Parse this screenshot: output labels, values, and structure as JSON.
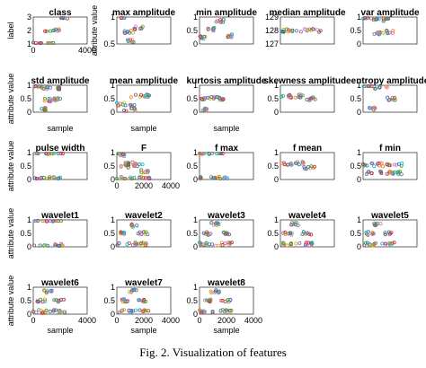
{
  "caption": "Fig. 2.   Visualization of features",
  "palette": [
    "#1f77b4",
    "#d62728",
    "#2ca02c",
    "#9467bd",
    "#ff7f0e",
    "#17becf",
    "#e377c2",
    "#8c564b",
    "#bcbd22",
    "#7f7f7f"
  ],
  "chart_data": [
    {
      "type": "scatter",
      "title": "class",
      "xlabel": "",
      "ylabel": "label",
      "xlim": [
        0,
        4000
      ],
      "ylim": [
        1,
        3
      ],
      "x_ticks": [
        "0",
        "4000"
      ],
      "y_ticks": [
        "1",
        "2",
        "3"
      ],
      "clusters": [
        {
          "x": [
            0,
            1600
          ],
          "y": 1
        },
        {
          "x": [
            800,
            2000
          ],
          "y": 2
        },
        {
          "x": [
            1800,
            2600
          ],
          "y": 3
        }
      ]
    },
    {
      "type": "scatter",
      "title": "max amplitude",
      "xlabel": "",
      "ylabel": "attribute value",
      "xlim": [
        0,
        4000
      ],
      "ylim": [
        0,
        1
      ],
      "x_ticks": [],
      "y_ticks": [
        "0.5",
        "1"
      ],
      "clusters": [
        {
          "x": [
            0,
            600
          ],
          "y": 1
        },
        {
          "x": [
            500,
            1200
          ],
          "y": 0.45
        },
        {
          "x": [
            1300,
            2000
          ],
          "y": 0.6
        },
        {
          "x": [
            800,
            1300
          ],
          "y": 0.1
        }
      ]
    },
    {
      "type": "scatter",
      "title": "min amplitude",
      "xlabel": "",
      "ylabel": "",
      "xlim": [
        0,
        4000
      ],
      "ylim": [
        0,
        1
      ],
      "x_ticks": [],
      "y_ticks": [
        "0",
        "0.5",
        "1"
      ],
      "clusters": [
        {
          "x": [
            0,
            600
          ],
          "y": 0.25
        },
        {
          "x": [
            500,
            1100
          ],
          "y": 0.55
        },
        {
          "x": [
            1100,
            1800
          ],
          "y": 0.85
        },
        {
          "x": [
            1700,
            2600
          ],
          "y": 0.3
        }
      ]
    },
    {
      "type": "scatter",
      "title": "median amplitude",
      "xlabel": "",
      "ylabel": "",
      "xlim": [
        0,
        4000
      ],
      "ylim": [
        127,
        129
      ],
      "x_ticks": [],
      "y_ticks": [
        "127",
        "128",
        "129"
      ],
      "clusters": [
        {
          "x": [
            0,
            3000
          ],
          "y": 128
        }
      ]
    },
    {
      "type": "scatter",
      "title": "var amplitude",
      "xlabel": "",
      "ylabel": "",
      "xlim": [
        0,
        4000
      ],
      "ylim": [
        0,
        1
      ],
      "x_ticks": [],
      "y_ticks": [
        "0",
        "0.5",
        "1"
      ],
      "clusters": [
        {
          "x": [
            0,
            600
          ],
          "y": 1
        },
        {
          "x": [
            600,
            1200
          ],
          "y": 0.9
        },
        {
          "x": [
            1300,
            1900
          ],
          "y": 0.9
        },
        {
          "x": [
            700,
            1300
          ],
          "y": 0.4
        },
        {
          "x": [
            1500,
            2300
          ],
          "y": 0.45
        }
      ]
    },
    {
      "type": "scatter",
      "title": "std amplitude",
      "xlabel": "sample",
      "ylabel": "attribute value",
      "xlim": [
        0,
        4000
      ],
      "ylim": [
        0,
        1
      ],
      "x_ticks": [],
      "y_ticks": [
        "0",
        "0.5",
        "1"
      ],
      "clusters": [
        {
          "x": [
            0,
            600
          ],
          "y": 1
        },
        {
          "x": [
            600,
            1300
          ],
          "y": 0.9
        },
        {
          "x": [
            1300,
            2000
          ],
          "y": 0.9
        },
        {
          "x": [
            800,
            1300
          ],
          "y": 0.45
        },
        {
          "x": [
            1500,
            2200
          ],
          "y": 0.5
        },
        {
          "x": [
            600,
            1000
          ],
          "y": 0.1
        }
      ]
    },
    {
      "type": "scatter",
      "title": "mean amplitude",
      "xlabel": "sample",
      "ylabel": "",
      "xlim": [
        0,
        4000
      ],
      "ylim": [
        0,
        1
      ],
      "x_ticks": [],
      "y_ticks": [
        "0",
        "0.5",
        "1"
      ],
      "clusters": [
        {
          "x": [
            0,
            1300
          ],
          "y": 0.3
        },
        {
          "x": [
            1000,
            2600
          ],
          "y": 0.6
        },
        {
          "x": [
            500,
            1500
          ],
          "y": 0.1
        }
      ]
    },
    {
      "type": "scatter",
      "title": "kurtosis amplitude",
      "xlabel": "sample",
      "ylabel": "",
      "xlim": [
        0,
        4000
      ],
      "ylim": [
        0,
        1
      ],
      "x_ticks": [],
      "y_ticks": [
        "0",
        "0.5",
        "1"
      ],
      "clusters": [
        {
          "x": [
            0,
            700
          ],
          "y": 0.5
        },
        {
          "x": [
            600,
            1400
          ],
          "y": 0.55
        },
        {
          "x": [
            1400,
            2200
          ],
          "y": 0.5
        },
        {
          "x": [
            200,
            600
          ],
          "y": 0.1
        }
      ]
    },
    {
      "type": "scatter",
      "title": "skewness amplitude",
      "xlabel": "",
      "ylabel": "",
      "xlim": [
        0,
        4000
      ],
      "ylim": [
        0,
        1
      ],
      "x_ticks": [],
      "y_ticks": [
        "0",
        "0.5",
        "1"
      ],
      "clusters": [
        {
          "x": [
            0,
            800
          ],
          "y": 0.6
        },
        {
          "x": [
            800,
            1800
          ],
          "y": 0.6
        },
        {
          "x": [
            1800,
            2600
          ],
          "y": 0.5
        }
      ]
    },
    {
      "type": "scatter",
      "title": "entropy amplitude",
      "xlabel": "",
      "ylabel": "",
      "xlim": [
        0,
        4000
      ],
      "ylim": [
        0,
        1
      ],
      "x_ticks": [],
      "y_ticks": [
        "0",
        "0.5",
        "1"
      ],
      "clusters": [
        {
          "x": [
            0,
            800
          ],
          "y": 1
        },
        {
          "x": [
            800,
            1800
          ],
          "y": 0.9
        },
        {
          "x": [
            1800,
            2400
          ],
          "y": 0.5
        },
        {
          "x": [
            400,
            900
          ],
          "y": 0.15
        }
      ]
    },
    {
      "type": "scatter",
      "title": "pulse width",
      "xlabel": "",
      "ylabel": "attribute value",
      "xlim": [
        0,
        4000
      ],
      "ylim": [
        0,
        1
      ],
      "x_ticks": [],
      "y_ticks": [
        "0",
        "0.5",
        "1"
      ],
      "clusters": [
        {
          "x": [
            0,
            2200
          ],
          "y": 1
        },
        {
          "x": [
            0,
            2200
          ],
          "y": 0.05
        }
      ]
    },
    {
      "type": "scatter",
      "title": "F",
      "xlabel": "",
      "ylabel": "",
      "xlim": [
        0,
        4000
      ],
      "ylim": [
        0,
        1
      ],
      "x_ticks": [
        "0",
        "2000",
        "4000"
      ],
      "y_ticks": [
        "0",
        "0.5",
        "1"
      ],
      "clusters": [
        {
          "x": [
            0,
            600
          ],
          "y": 0.9
        },
        {
          "x": [
            300,
            900
          ],
          "y": 0.5
        },
        {
          "x": [
            600,
            1300
          ],
          "y": 0.6
        },
        {
          "x": [
            1200,
            2000
          ],
          "y": 0.55
        },
        {
          "x": [
            1800,
            2500
          ],
          "y": 0.3
        },
        {
          "x": [
            0,
            2500
          ],
          "y": 0.05
        }
      ]
    },
    {
      "type": "scatter",
      "title": "f max",
      "xlabel": "",
      "ylabel": "",
      "xlim": [
        0,
        4000
      ],
      "ylim": [
        0,
        1
      ],
      "x_ticks": [],
      "y_ticks": [
        "0",
        "0.5",
        "1"
      ],
      "clusters": [
        {
          "x": [
            0,
            1900
          ],
          "y": 1
        },
        {
          "x": [
            0,
            2100
          ],
          "y": 0.05
        }
      ]
    },
    {
      "type": "scatter",
      "title": "f mean",
      "xlabel": "",
      "ylabel": "",
      "xlim": [
        0,
        4000
      ],
      "ylim": [
        0,
        1
      ],
      "x_ticks": [],
      "y_ticks": [
        "0",
        "0.5",
        "1"
      ],
      "clusters": [
        {
          "x": [
            0,
            900
          ],
          "y": 0.6
        },
        {
          "x": [
            900,
            1800
          ],
          "y": 0.6
        },
        {
          "x": [
            1700,
            2600
          ],
          "y": 0.45
        }
      ]
    },
    {
      "type": "scatter",
      "title": "f min",
      "xlabel": "",
      "ylabel": "",
      "xlim": [
        0,
        4000
      ],
      "ylim": [
        0,
        1
      ],
      "x_ticks": [],
      "y_ticks": [
        "0",
        "0.5",
        "1"
      ],
      "clusters": [
        {
          "x": [
            0,
            3000
          ],
          "y": 0.25
        },
        {
          "x": [
            0,
            3000
          ],
          "y": 0.55
        }
      ]
    },
    {
      "type": "scatter",
      "title": "wavelet1",
      "xlabel": "",
      "ylabel": "attribute value",
      "xlim": [
        0,
        4000
      ],
      "ylim": [
        0,
        1
      ],
      "x_ticks": [],
      "y_ticks": [
        "0",
        "0.5",
        "1"
      ],
      "clusters": [
        {
          "x": [
            0,
            2200
          ],
          "y": 1
        },
        {
          "x": [
            0,
            2200
          ],
          "y": 0.05
        }
      ]
    },
    {
      "type": "scatter",
      "title": "wavelet2",
      "xlabel": "",
      "ylabel": "",
      "xlim": [
        0,
        4000
      ],
      "ylim": [
        0,
        1
      ],
      "x_ticks": [],
      "y_ticks": [
        "0",
        "0.5",
        "1"
      ],
      "clusters": [
        {
          "x": [
            200,
            900
          ],
          "y": 0.5
        },
        {
          "x": [
            800,
            1500
          ],
          "y": 0.8
        },
        {
          "x": [
            1500,
            2300
          ],
          "y": 0.5
        },
        {
          "x": [
            0,
            2400
          ],
          "y": 0.1
        }
      ]
    },
    {
      "type": "scatter",
      "title": "wavelet3",
      "xlabel": "",
      "ylabel": "",
      "xlim": [
        0,
        4000
      ],
      "ylim": [
        0,
        1
      ],
      "x_ticks": [],
      "y_ticks": [
        "0",
        "0.5",
        "1"
      ],
      "clusters": [
        {
          "x": [
            200,
            900
          ],
          "y": 0.5
        },
        {
          "x": [
            800,
            1500
          ],
          "y": 0.85
        },
        {
          "x": [
            1500,
            2300
          ],
          "y": 0.5
        },
        {
          "x": [
            0,
            2400
          ],
          "y": 0.1
        }
      ]
    },
    {
      "type": "scatter",
      "title": "wavelet4",
      "xlabel": "",
      "ylabel": "",
      "xlim": [
        0,
        4000
      ],
      "ylim": [
        0,
        1
      ],
      "x_ticks": [],
      "y_ticks": [
        "0",
        "0.5",
        "1"
      ],
      "clusters": [
        {
          "x": [
            200,
            900
          ],
          "y": 0.5
        },
        {
          "x": [
            800,
            1500
          ],
          "y": 0.85
        },
        {
          "x": [
            1500,
            2300
          ],
          "y": 0.5
        },
        {
          "x": [
            0,
            2400
          ],
          "y": 0.1
        }
      ]
    },
    {
      "type": "scatter",
      "title": "wavelet5",
      "xlabel": "",
      "ylabel": "",
      "xlim": [
        0,
        4000
      ],
      "ylim": [
        0,
        1
      ],
      "x_ticks": [],
      "y_ticks": [
        "0",
        "0.5",
        "1"
      ],
      "clusters": [
        {
          "x": [
            200,
            900
          ],
          "y": 0.5
        },
        {
          "x": [
            800,
            1500
          ],
          "y": 0.85
        },
        {
          "x": [
            1500,
            2300
          ],
          "y": 0.5
        },
        {
          "x": [
            0,
            2400
          ],
          "y": 0.1
        }
      ]
    },
    {
      "type": "scatter",
      "title": "wavelet6",
      "xlabel": "sample",
      "ylabel": "attribute value",
      "xlim": [
        0,
        4000
      ],
      "ylim": [
        0,
        1
      ],
      "x_ticks": [
        "0",
        "4000"
      ],
      "y_ticks": [
        "0",
        "0.5",
        "1"
      ],
      "clusters": [
        {
          "x": [
            200,
            900
          ],
          "y": 0.5
        },
        {
          "x": [
            800,
            1500
          ],
          "y": 0.85
        },
        {
          "x": [
            1500,
            2300
          ],
          "y": 0.5
        },
        {
          "x": [
            0,
            2400
          ],
          "y": 0.1
        }
      ]
    },
    {
      "type": "scatter",
      "title": "wavelet7",
      "xlabel": "sample",
      "ylabel": "",
      "xlim": [
        0,
        4000
      ],
      "ylim": [
        0,
        1
      ],
      "x_ticks": [
        "0",
        "2000",
        "4000"
      ],
      "y_ticks": [
        "0",
        "0.5",
        "1"
      ],
      "clusters": [
        {
          "x": [
            200,
            900
          ],
          "y": 0.5
        },
        {
          "x": [
            800,
            1500
          ],
          "y": 0.85
        },
        {
          "x": [
            1500,
            2300
          ],
          "y": 0.5
        },
        {
          "x": [
            0,
            2400
          ],
          "y": 0.1
        }
      ]
    },
    {
      "type": "scatter",
      "title": "wavelet8",
      "xlabel": "sample",
      "ylabel": "",
      "xlim": [
        0,
        4000
      ],
      "ylim": [
        0,
        1
      ],
      "x_ticks": [
        "0",
        "2000",
        "4000"
      ],
      "y_ticks": [
        "0",
        "0.5",
        "1"
      ],
      "clusters": [
        {
          "x": [
            200,
            900
          ],
          "y": 0.5
        },
        {
          "x": [
            800,
            1500
          ],
          "y": 0.85
        },
        {
          "x": [
            1500,
            2300
          ],
          "y": 0.5
        },
        {
          "x": [
            0,
            2400
          ],
          "y": 0.1
        }
      ]
    }
  ]
}
